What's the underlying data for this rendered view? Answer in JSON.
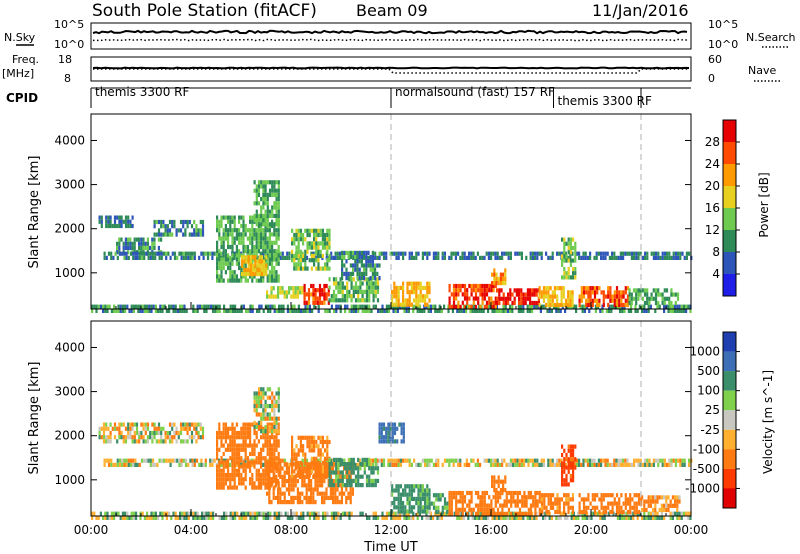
{
  "header": {
    "title": "South Pole Station (fitACF)",
    "beam": "Beam 09",
    "date": "11/Jan/2016"
  },
  "left_labels": {
    "nsky": "N.Sky",
    "freq": "Freq.",
    "freq_unit": "[MHz]",
    "cpid": "CPID"
  },
  "right_labels": {
    "nsearch": "N.Search",
    "nave": "Nave"
  },
  "noise_panel": {
    "ticks_left": [
      "10^5",
      "10^0"
    ],
    "ticks_right": [
      "10^5",
      "10^0"
    ]
  },
  "freq_panel": {
    "ticks_left": [
      "18",
      "8"
    ],
    "ticks_right": [
      "60",
      "0"
    ]
  },
  "cpid_segments": [
    {
      "label": "themis 3300 RF",
      "start_hr": 0
    },
    {
      "label": "normalsound (fast) 157 RF",
      "start_hr": 12
    },
    {
      "label": "themis 3300 RF",
      "start_hr": 18.5
    },
    {
      "label": "",
      "start_hr": 22
    }
  ],
  "axes": {
    "ylabel": "Slant Range [km]",
    "xlabel": "Time UT",
    "x_ticks": [
      "00:00",
      "04:00",
      "08:00",
      "12:00",
      "16:00",
      "20:00",
      "00:00"
    ],
    "y_ticks": [
      "1000",
      "2000",
      "3000",
      "4000"
    ],
    "x_range_hr": [
      0,
      24
    ],
    "y_range_km": [
      180,
      4600
    ]
  },
  "power_colorbar": {
    "label": "Power [dB]",
    "ticks": [
      "4",
      "8",
      "12",
      "16",
      "20",
      "24",
      "28"
    ],
    "colors": [
      "#1e1ee8",
      "#2e55b8",
      "#2e8b57",
      "#6ecb50",
      "#e8d020",
      "#ff9a00",
      "#ff4a00",
      "#e60000"
    ]
  },
  "velocity_colorbar": {
    "label": "Velocity [m s^-1]",
    "ticks": [
      "1000",
      "500",
      "100",
      "25",
      "-25",
      "-100",
      "-500",
      "-1000"
    ],
    "colors": [
      "#1f3fb0",
      "#3c6fb5",
      "#3a8f6a",
      "#7fd04a",
      "#c8c8c0",
      "#ffb030",
      "#ff7a10",
      "#ff3a00",
      "#e00000"
    ]
  },
  "chart_data": [
    {
      "type": "heatmap",
      "title": "Power",
      "xlabel": "Time UT",
      "ylabel": "Slant Range [km]",
      "xlim_hr": [
        0,
        24
      ],
      "ylim_km": [
        180,
        4600
      ],
      "scale_label": "Power [dB]",
      "scale_range_db": [
        0,
        32
      ],
      "regions": [
        {
          "t0": 0.0,
          "t1": 24.0,
          "r0": 180,
          "r1": 280,
          "value": 10
        },
        {
          "t0": 0.3,
          "t1": 1.7,
          "r0": 2050,
          "r1": 2300,
          "value": 8
        },
        {
          "t0": 1.0,
          "t1": 2.8,
          "r0": 1500,
          "r1": 1800,
          "value": 10
        },
        {
          "t0": 2.5,
          "t1": 4.5,
          "r0": 1900,
          "r1": 2200,
          "value": 9
        },
        {
          "t0": 0.5,
          "t1": 12.0,
          "r0": 1380,
          "r1": 1480,
          "value": 9
        },
        {
          "t0": 5.0,
          "t1": 7.5,
          "r0": 800,
          "r1": 2300,
          "value": 12
        },
        {
          "t0": 6.0,
          "t1": 7.0,
          "r0": 1000,
          "r1": 1400,
          "value": 20
        },
        {
          "t0": 6.5,
          "t1": 7.5,
          "r0": 2100,
          "r1": 3100,
          "value": 12
        },
        {
          "t0": 8.0,
          "t1": 9.5,
          "r0": 1100,
          "r1": 2000,
          "value": 14
        },
        {
          "t0": 7.0,
          "t1": 8.5,
          "r0": 450,
          "r1": 700,
          "value": 16
        },
        {
          "t0": 8.5,
          "t1": 9.5,
          "r0": 300,
          "r1": 750,
          "value": 27
        },
        {
          "t0": 9.5,
          "t1": 11.5,
          "r0": 350,
          "r1": 900,
          "value": 13
        },
        {
          "t0": 10.0,
          "t1": 11.5,
          "r0": 900,
          "r1": 1500,
          "value": 10
        },
        {
          "t0": 12.0,
          "t1": 13.5,
          "r0": 300,
          "r1": 800,
          "value": 20
        },
        {
          "t0": 12.0,
          "t1": 24.0,
          "r0": 1380,
          "r1": 1480,
          "value": 8
        },
        {
          "t0": 14.3,
          "t1": 16.2,
          "r0": 250,
          "r1": 750,
          "value": 27
        },
        {
          "t0": 16.2,
          "t1": 17.9,
          "r0": 300,
          "r1": 650,
          "value": 29
        },
        {
          "t0": 16.0,
          "t1": 16.6,
          "r0": 750,
          "r1": 1100,
          "value": 22
        },
        {
          "t0": 17.9,
          "t1": 19.3,
          "r0": 300,
          "r1": 700,
          "value": 20
        },
        {
          "t0": 18.8,
          "t1": 19.4,
          "r0": 900,
          "r1": 1800,
          "value": 14
        },
        {
          "t0": 19.5,
          "t1": 21.5,
          "r0": 300,
          "r1": 700,
          "value": 26
        },
        {
          "t0": 21.5,
          "t1": 23.5,
          "r0": 300,
          "r1": 650,
          "value": 12
        }
      ]
    },
    {
      "type": "heatmap",
      "title": "Velocity",
      "xlabel": "Time UT",
      "ylabel": "Slant Range [km]",
      "xlim_hr": [
        0,
        24
      ],
      "ylim_km": [
        180,
        4600
      ],
      "scale_label": "Velocity [m s^-1]",
      "scale_range_ms": [
        -1000,
        1000
      ],
      "regions": [
        {
          "t0": 0.0,
          "t1": 24.0,
          "r0": 180,
          "r1": 280,
          "value": 50
        },
        {
          "t0": 0.3,
          "t1": 4.5,
          "r0": 1900,
          "r1": 2300,
          "value": 0
        },
        {
          "t0": 0.5,
          "t1": 12.0,
          "r0": 1380,
          "r1": 1480,
          "value": 0
        },
        {
          "t0": 5.0,
          "t1": 7.5,
          "r0": 800,
          "r1": 2300,
          "value": -300
        },
        {
          "t0": 6.5,
          "t1": 7.5,
          "r0": 2100,
          "r1": 3100,
          "value": 0
        },
        {
          "t0": 7.0,
          "t1": 10.5,
          "r0": 450,
          "r1": 1400,
          "value": -300
        },
        {
          "t0": 8.0,
          "t1": 9.5,
          "r0": 1100,
          "r1": 2000,
          "value": -200
        },
        {
          "t0": 9.5,
          "t1": 11.5,
          "r0": 900,
          "r1": 1500,
          "value": 200
        },
        {
          "t0": 11.5,
          "t1": 12.5,
          "r0": 1900,
          "r1": 2300,
          "value": 600
        },
        {
          "t0": 12.0,
          "t1": 13.5,
          "r0": 300,
          "r1": 900,
          "value": 200
        },
        {
          "t0": 13.5,
          "t1": 14.3,
          "r0": 300,
          "r1": 700,
          "value": 150
        },
        {
          "t0": 12.0,
          "t1": 24.0,
          "r0": 1380,
          "r1": 1480,
          "value": 0
        },
        {
          "t0": 14.3,
          "t1": 18.0,
          "r0": 250,
          "r1": 750,
          "value": -300
        },
        {
          "t0": 16.0,
          "t1": 16.6,
          "r0": 750,
          "r1": 1100,
          "value": -250
        },
        {
          "t0": 18.0,
          "t1": 19.3,
          "r0": 300,
          "r1": 700,
          "value": -200
        },
        {
          "t0": 18.8,
          "t1": 19.4,
          "r0": 900,
          "r1": 1800,
          "value": -600
        },
        {
          "t0": 19.5,
          "t1": 22.0,
          "r0": 300,
          "r1": 700,
          "value": -250
        },
        {
          "t0": 22.0,
          "t1": 23.5,
          "r0": 300,
          "r1": 650,
          "value": -150
        }
      ]
    }
  ]
}
